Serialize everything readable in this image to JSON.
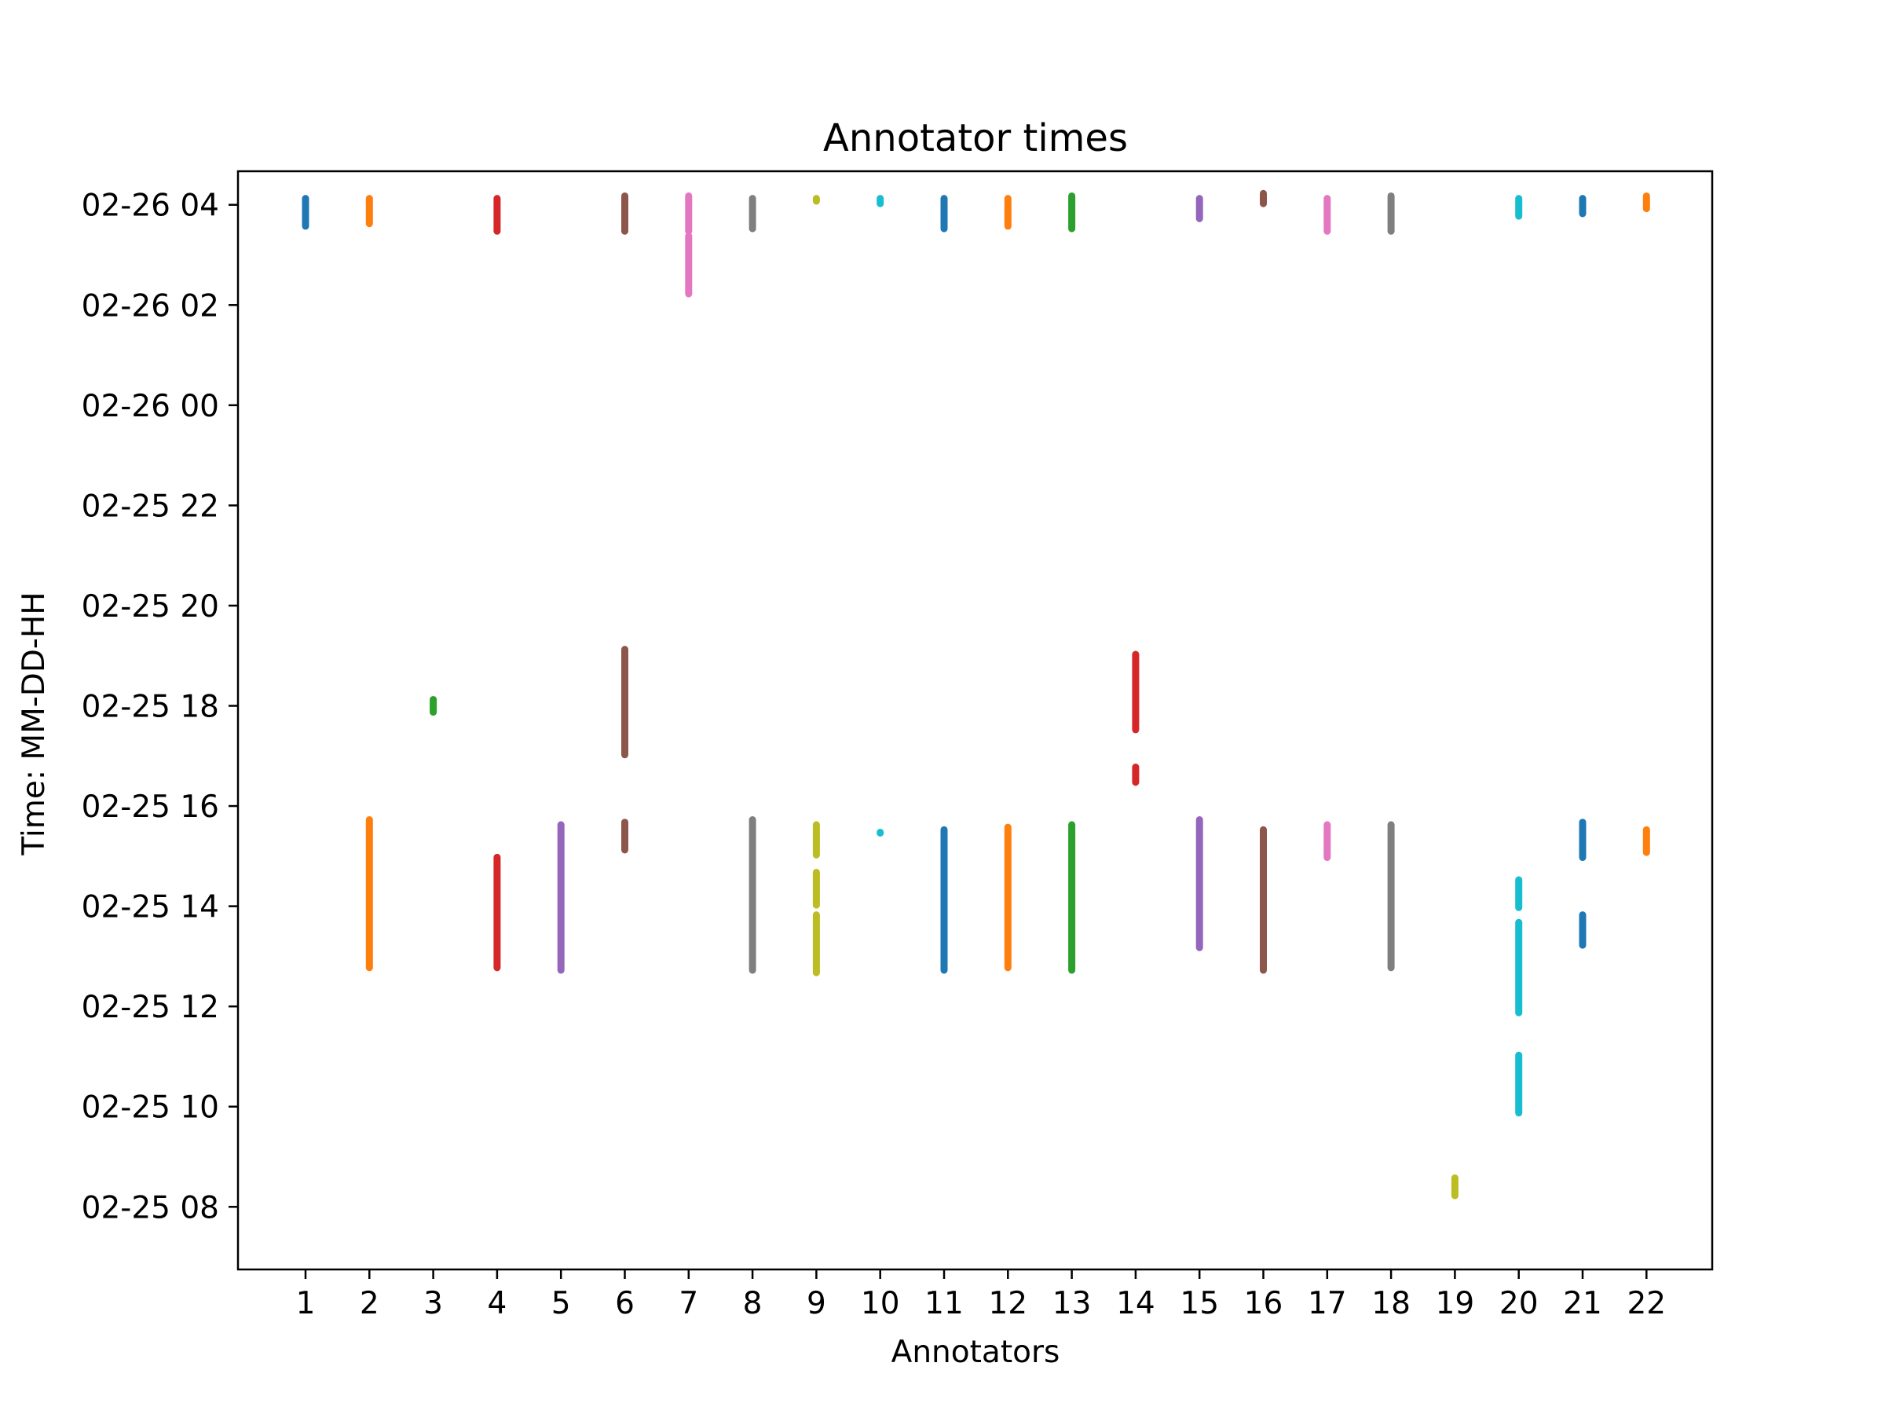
{
  "chart_data": {
    "type": "scatter",
    "title": "Annotator times",
    "xlabel": "Annotators",
    "ylabel": "Time: MM-DD-HH",
    "x_categories": [
      "1",
      "2",
      "3",
      "4",
      "5",
      "6",
      "7",
      "8",
      "9",
      "10",
      "11",
      "12",
      "13",
      "14",
      "15",
      "16",
      "17",
      "18",
      "19",
      "20",
      "21",
      "22"
    ],
    "highlighted_categories": [
      "2",
      "4",
      "6",
      "7",
      "8",
      "11",
      "14",
      "18",
      "20",
      "22"
    ],
    "highlight_color": "#ff0000",
    "y_axis": {
      "type": "time",
      "range_hours": [
        6.75,
        28.67
      ],
      "ticks": [
        {
          "label": "02-25 08",
          "hours": 8
        },
        {
          "label": "02-25 10",
          "hours": 10
        },
        {
          "label": "02-25 12",
          "hours": 12
        },
        {
          "label": "02-25 14",
          "hours": 14
        },
        {
          "label": "02-25 16",
          "hours": 16
        },
        {
          "label": "02-25 18",
          "hours": 18
        },
        {
          "label": "02-25 20",
          "hours": 20
        },
        {
          "label": "02-25 22",
          "hours": 22
        },
        {
          "label": "02-26 00",
          "hours": 24
        },
        {
          "label": "02-26 02",
          "hours": 26
        },
        {
          "label": "02-26 04",
          "hours": 28
        }
      ]
    },
    "grid": false,
    "series": [
      {
        "annotator": "1",
        "color": "#1f77b4",
        "segments": [
          [
            27.55,
            28.15
          ]
        ]
      },
      {
        "annotator": "2",
        "color": "#ff7f0e",
        "segments": [
          [
            12.75,
            15.75
          ],
          [
            27.6,
            28.15
          ]
        ]
      },
      {
        "annotator": "3",
        "color": "#2ca02c",
        "segments": [
          [
            17.85,
            18.15
          ]
        ]
      },
      {
        "annotator": "4",
        "color": "#d62728",
        "segments": [
          [
            12.75,
            15.0
          ],
          [
            27.45,
            28.15
          ]
        ]
      },
      {
        "annotator": "5",
        "color": "#9467bd",
        "segments": [
          [
            12.7,
            15.65
          ]
        ]
      },
      {
        "annotator": "6",
        "color": "#8c564b",
        "segments": [
          [
            15.1,
            15.7
          ],
          [
            17.0,
            19.15
          ],
          [
            27.45,
            28.2
          ]
        ]
      },
      {
        "annotator": "7",
        "color": "#e377c2",
        "segments": [
          [
            26.2,
            27.4
          ],
          [
            27.45,
            28.2
          ]
        ]
      },
      {
        "annotator": "8",
        "color": "#7f7f7f",
        "segments": [
          [
            12.7,
            15.75
          ],
          [
            27.5,
            28.15
          ]
        ]
      },
      {
        "annotator": "9",
        "color": "#bcbd22",
        "segments": [
          [
            12.65,
            13.85
          ],
          [
            14.0,
            14.7
          ],
          [
            15.0,
            15.65
          ],
          [
            28.05,
            28.15
          ]
        ]
      },
      {
        "annotator": "10",
        "color": "#17becf",
        "segments": [
          [
            15.45,
            15.5
          ],
          [
            28.0,
            28.15
          ]
        ]
      },
      {
        "annotator": "11",
        "color": "#1f77b4",
        "segments": [
          [
            12.7,
            15.55
          ],
          [
            27.5,
            28.15
          ]
        ]
      },
      {
        "annotator": "12",
        "color": "#ff7f0e",
        "segments": [
          [
            12.75,
            15.6
          ],
          [
            27.55,
            28.15
          ]
        ]
      },
      {
        "annotator": "13",
        "color": "#2ca02c",
        "segments": [
          [
            12.7,
            15.65
          ],
          [
            27.5,
            28.2
          ]
        ]
      },
      {
        "annotator": "14",
        "color": "#d62728",
        "segments": [
          [
            16.45,
            16.8
          ],
          [
            17.5,
            19.05
          ]
        ]
      },
      {
        "annotator": "15",
        "color": "#9467bd",
        "segments": [
          [
            13.15,
            15.75
          ],
          [
            27.7,
            28.15
          ]
        ]
      },
      {
        "annotator": "16",
        "color": "#8c564b",
        "segments": [
          [
            12.7,
            15.55
          ],
          [
            28.0,
            28.25
          ]
        ]
      },
      {
        "annotator": "17",
        "color": "#e377c2",
        "segments": [
          [
            14.95,
            15.65
          ],
          [
            27.45,
            28.15
          ]
        ]
      },
      {
        "annotator": "18",
        "color": "#7f7f7f",
        "segments": [
          [
            12.75,
            15.65
          ],
          [
            27.45,
            28.2
          ]
        ]
      },
      {
        "annotator": "19",
        "color": "#bcbd22",
        "segments": [
          [
            8.2,
            8.6
          ]
        ]
      },
      {
        "annotator": "20",
        "color": "#17becf",
        "segments": [
          [
            9.85,
            11.05
          ],
          [
            11.85,
            13.7
          ],
          [
            13.95,
            14.55
          ],
          [
            27.75,
            28.15
          ]
        ]
      },
      {
        "annotator": "21",
        "color": "#1f77b4",
        "segments": [
          [
            13.2,
            13.85
          ],
          [
            14.95,
            15.7
          ],
          [
            27.8,
            28.15
          ]
        ]
      },
      {
        "annotator": "22",
        "color": "#ff7f0e",
        "segments": [
          [
            15.05,
            15.55
          ],
          [
            27.9,
            28.2
          ]
        ]
      }
    ]
  }
}
